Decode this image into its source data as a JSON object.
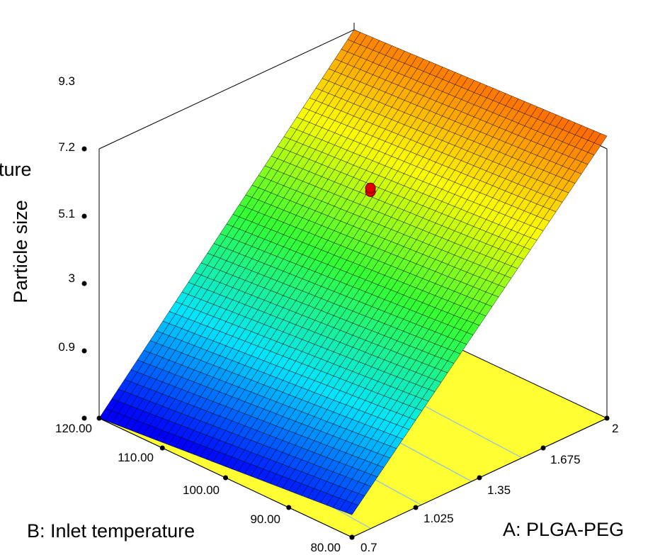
{
  "chart_data": {
    "type": "surface",
    "title": "",
    "zlabel": "Particle size",
    "xlabel": "A: PLGA-PEG",
    "ylabel": "B: Inlet temperature",
    "ylabel_partial": "ture",
    "x_ticks": [
      "0.7",
      "1.025",
      "1.35",
      "1.675",
      "2"
    ],
    "y_ticks": [
      "80.00",
      "90.00",
      "100.00",
      "110.00",
      "120.00"
    ],
    "z_ticks": [
      "0.9",
      "3",
      "5.1",
      "7.2",
      "9.3"
    ],
    "x_range": [
      0.7,
      2
    ],
    "y_range": [
      80,
      120
    ],
    "z_range": [
      0.9,
      9.3
    ],
    "surface_corners": {
      "A_0.7_B_120": 0.9,
      "A_0.7_B_80": 1.6,
      "A_2_B_120": 9.3,
      "A_2_B_80": 9.7
    },
    "design_point": {
      "A": 1.6,
      "B": 105,
      "z": 6.9
    },
    "grid": true,
    "floor_color": "#ffff33",
    "point_color": "#e00000",
    "colormap": [
      "#0000ff",
      "#00e5ff",
      "#33ff33",
      "#ffff00",
      "#ff6600"
    ]
  }
}
